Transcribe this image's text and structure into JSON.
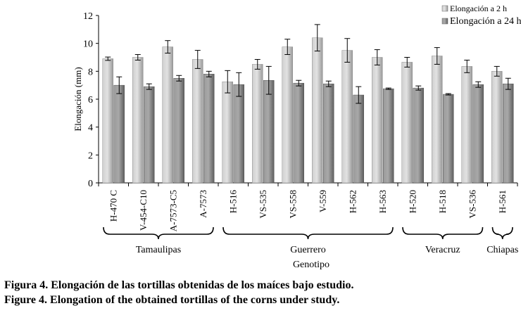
{
  "chart_data": {
    "type": "bar",
    "ylabel": "Elongación (mm)",
    "xlabel": "Genotipo",
    "ylim": [
      0,
      12
    ],
    "yticks": [
      0,
      2,
      4,
      6,
      8,
      10,
      12
    ],
    "grid": false,
    "legend_position": "top-right",
    "categories": [
      "H-470 C",
      "V-454-C10",
      "A-7573-C5",
      "A-7573",
      "H-516",
      "VS-535",
      "VS-558",
      "V-559",
      "H-562",
      "H-563",
      "H-520",
      "H-518",
      "VS-536",
      "H-561"
    ],
    "series": [
      {
        "name": "Elongación a 2 h",
        "color": "#b5b5b5",
        "values": [
          8.9,
          9.0,
          9.75,
          8.85,
          7.25,
          8.5,
          9.75,
          10.4,
          9.5,
          9.0,
          8.65,
          9.1,
          8.35,
          8.0
        ],
        "errors": [
          0.12,
          0.2,
          0.45,
          0.65,
          0.8,
          0.35,
          0.55,
          0.95,
          0.85,
          0.55,
          0.35,
          0.6,
          0.45,
          0.35
        ]
      },
      {
        "name": "Elongación a 24 h",
        "color": "#7f7f7f",
        "values": [
          7.0,
          6.9,
          7.5,
          7.8,
          7.05,
          7.35,
          7.15,
          7.1,
          6.3,
          6.75,
          6.8,
          6.35,
          7.05,
          7.1
        ],
        "errors": [
          0.6,
          0.2,
          0.2,
          0.2,
          0.85,
          1.0,
          0.2,
          0.2,
          0.6,
          0.05,
          0.15,
          0.05,
          0.2,
          0.4
        ]
      }
    ],
    "groups": [
      {
        "name": "Tamaulipas",
        "from": 0,
        "to": 3
      },
      {
        "name": "Guerrero",
        "from": 4,
        "to": 9
      },
      {
        "name": "Veracruz",
        "from": 10,
        "to": 12
      },
      {
        "name": "Chiapas",
        "from": 13,
        "to": 13
      }
    ]
  },
  "captions": {
    "es": "Figura 4. Elongación de las tortillas obtenidas de los maíces bajo estudio.",
    "en": "Figure 4. Elongation of the obtained tortillas of the corns under study."
  }
}
